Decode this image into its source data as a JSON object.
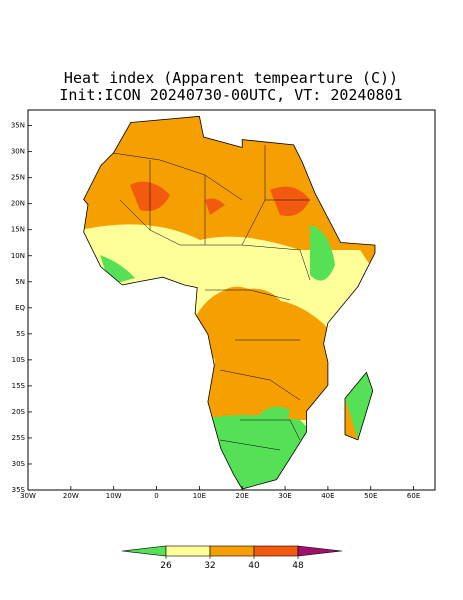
{
  "title": "Heat index (Apparent tempearture (C))",
  "subtitle": "Init:ICON 20240730-00UTC, VT: 20240801",
  "map": {
    "xlim": [
      -30,
      65
    ],
    "ylim": [
      -35,
      38
    ],
    "lon_ticks": [
      {
        "value": -30,
        "label": "30W"
      },
      {
        "value": -20,
        "label": "20W"
      },
      {
        "value": -10,
        "label": "10W"
      },
      0,
      {
        "value": 10,
        "label": "10E"
      },
      {
        "value": 20,
        "label": "20E"
      },
      {
        "value": 30,
        "label": "30E"
      },
      {
        "value": 40,
        "label": "40E"
      },
      {
        "value": 50,
        "label": "50E"
      },
      {
        "value": 60,
        "label": "60E"
      }
    ],
    "lat_ticks": [
      {
        "value": 35,
        "label": "35N"
      },
      {
        "value": 30,
        "label": "30N"
      },
      {
        "value": 25,
        "label": "25N"
      },
      {
        "value": 20,
        "label": "20N"
      },
      {
        "value": 15,
        "label": "15N"
      },
      {
        "value": 10,
        "label": "10N"
      },
      {
        "value": 5,
        "label": "5N"
      },
      {
        "value": 0,
        "label": "EQ"
      },
      {
        "value": -5,
        "label": "5S"
      },
      {
        "value": -10,
        "label": "10S"
      },
      {
        "value": -15,
        "label": "15S"
      },
      {
        "value": -20,
        "label": "20S"
      },
      {
        "value": -25,
        "label": "25S"
      },
      {
        "value": -30,
        "label": "30S"
      },
      {
        "value": -35,
        "label": "35S"
      }
    ]
  },
  "colorbar": {
    "ticks": [
      26,
      32,
      40,
      48
    ],
    "colors": [
      "#55e055",
      "#ffff99",
      "#f5a000",
      "#f25a10",
      "#a0106a"
    ]
  }
}
